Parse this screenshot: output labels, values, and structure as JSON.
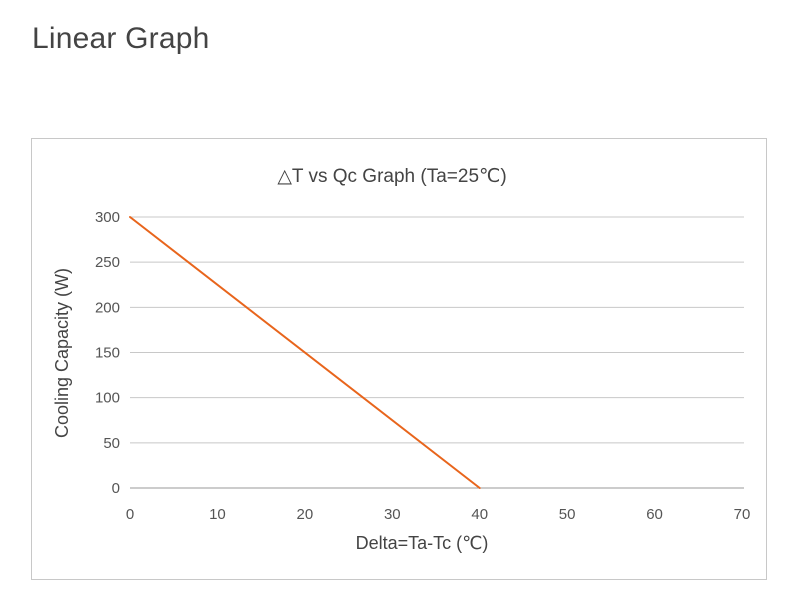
{
  "page": {
    "heading": "Linear Graph"
  },
  "chart_data": {
    "type": "line",
    "title": "△T vs Qc Graph (Ta=25℃)",
    "xlabel": "Delta=Ta-Tc (℃)",
    "ylabel": "Cooling Capacity (W)",
    "xlim": [
      0,
      70
    ],
    "ylim": [
      0,
      300
    ],
    "xticks": [
      0,
      10,
      20,
      30,
      40,
      50,
      60,
      70
    ],
    "yticks": [
      0,
      50,
      100,
      150,
      200,
      250,
      300
    ],
    "grid": "horizontal",
    "legend": "none",
    "series": [
      {
        "x": [
          0,
          40
        ],
        "y": [
          300,
          0
        ],
        "color": "#e8651c"
      }
    ],
    "colors": {
      "grid": "#c8c8c8",
      "axis": "#999999",
      "line": "#e8651c"
    }
  }
}
